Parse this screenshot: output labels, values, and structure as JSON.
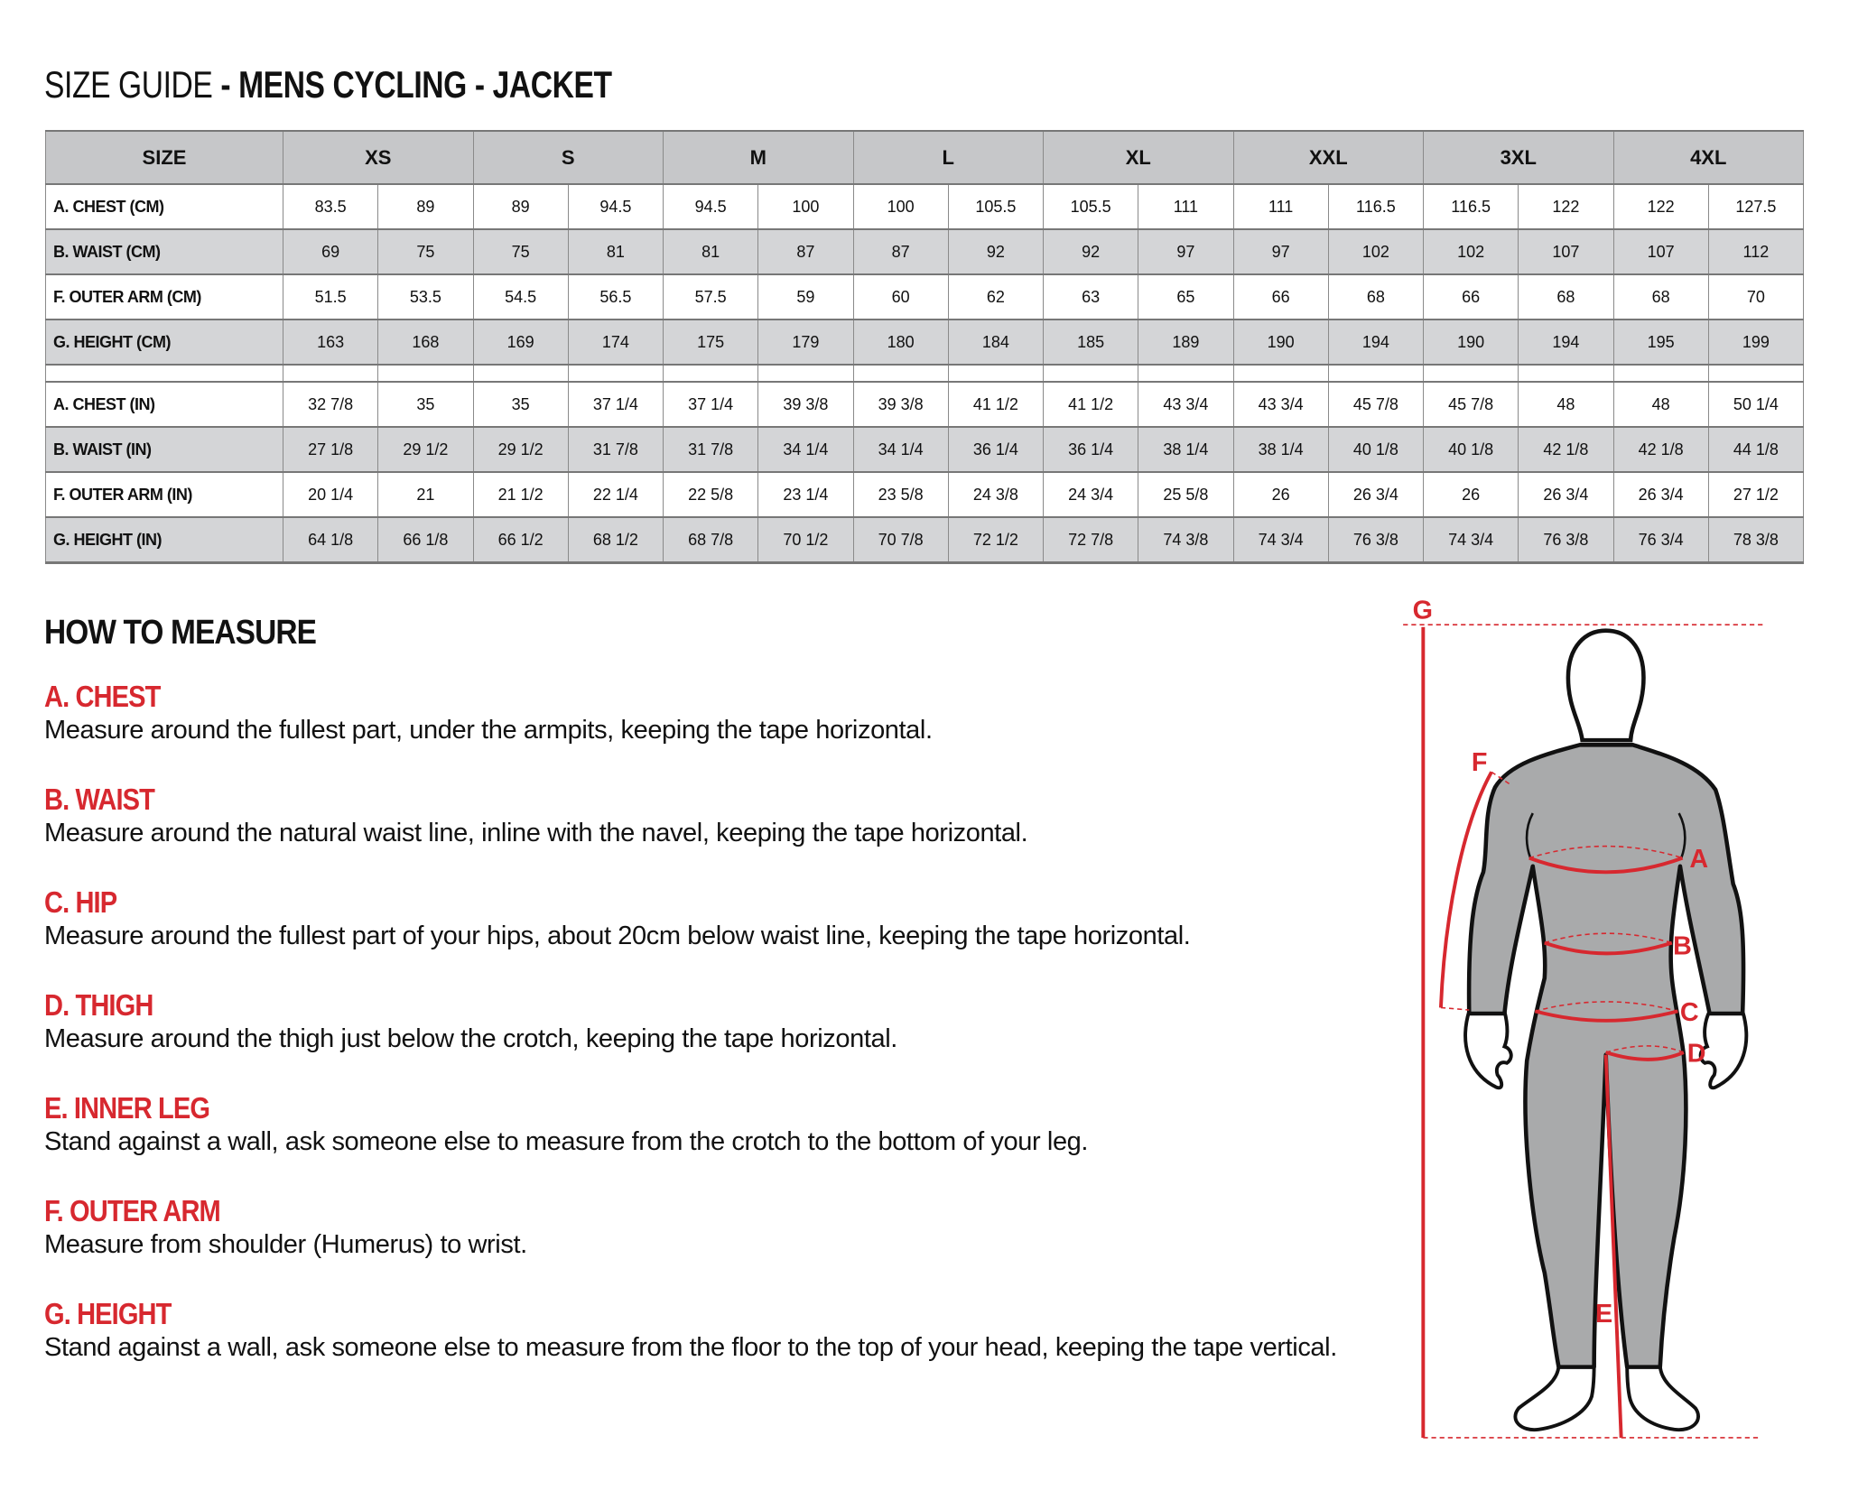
{
  "title": {
    "light": "SIZE GUIDE",
    "bold": " - MENS CYCLING - JACKET"
  },
  "table": {
    "header_label": "SIZE",
    "sizes": [
      "XS",
      "S",
      "M",
      "L",
      "XL",
      "XXL",
      "3XL",
      "4XL"
    ],
    "cm_rows": [
      {
        "label": "A. CHEST (CM)",
        "values": [
          "83.5",
          "89",
          "89",
          "94.5",
          "94.5",
          "100",
          "100",
          "105.5",
          "105.5",
          "111",
          "111",
          "116.5",
          "116.5",
          "122",
          "122",
          "127.5"
        ]
      },
      {
        "label": "B. WAIST (CM)",
        "values": [
          "69",
          "75",
          "75",
          "81",
          "81",
          "87",
          "87",
          "92",
          "92",
          "97",
          "97",
          "102",
          "102",
          "107",
          "107",
          "112"
        ]
      },
      {
        "label": "F. OUTER ARM (CM)",
        "values": [
          "51.5",
          "53.5",
          "54.5",
          "56.5",
          "57.5",
          "59",
          "60",
          "62",
          "63",
          "65",
          "66",
          "68",
          "66",
          "68",
          "68",
          "70"
        ]
      },
      {
        "label": "G. HEIGHT (CM)",
        "values": [
          "163",
          "168",
          "169",
          "174",
          "175",
          "179",
          "180",
          "184",
          "185",
          "189",
          "190",
          "194",
          "190",
          "194",
          "195",
          "199"
        ]
      }
    ],
    "in_rows": [
      {
        "label": "A. CHEST (IN)",
        "values": [
          "32 7/8",
          "35",
          "35",
          "37 1/4",
          "37 1/4",
          "39 3/8",
          "39 3/8",
          "41 1/2",
          "41 1/2",
          "43 3/4",
          "43 3/4",
          "45 7/8",
          "45 7/8",
          "48",
          "48",
          "50 1/4"
        ]
      },
      {
        "label": "B. WAIST (IN)",
        "values": [
          "27 1/8",
          "29 1/2",
          "29 1/2",
          "31 7/8",
          "31 7/8",
          "34 1/4",
          "34 1/4",
          "36 1/4",
          "36 1/4",
          "38 1/4",
          "38 1/4",
          "40 1/8",
          "40 1/8",
          "42 1/8",
          "42 1/8",
          "44 1/8"
        ]
      },
      {
        "label": "F. OUTER ARM (IN)",
        "values": [
          "20 1/4",
          "21",
          "21 1/2",
          "22 1/4",
          "22 5/8",
          "23 1/4",
          "23 5/8",
          "24 3/8",
          "24 3/4",
          "25 5/8",
          "26",
          "26 3/4",
          "26",
          "26 3/4",
          "26 3/4",
          "27 1/2"
        ]
      },
      {
        "label": "G. HEIGHT (IN)",
        "values": [
          "64 1/8",
          "66 1/8",
          "66 1/2",
          "68 1/2",
          "68 7/8",
          "70 1/2",
          "70 7/8",
          "72 1/2",
          "72 7/8",
          "74 3/8",
          "74 3/4",
          "76 3/8",
          "74 3/4",
          "76 3/8",
          "76 3/4",
          "78 3/8"
        ]
      }
    ]
  },
  "how_to_measure": {
    "heading": "HOW TO MEASURE",
    "items": [
      {
        "label": "A. CHEST",
        "text": "Measure around the fullest part, under the armpits, keeping the tape horizontal."
      },
      {
        "label": "B. WAIST",
        "text": "Measure around the natural waist line, inline with the navel, keeping the tape horizontal."
      },
      {
        "label": "C. HIP",
        "text": "Measure around the fullest part of your hips, about 20cm below waist line, keeping the tape horizontal."
      },
      {
        "label": "D. THIGH",
        "text": "Measure around the thigh just below the crotch, keeping the tape horizontal."
      },
      {
        "label": "E. INNER LEG",
        "text": "Stand against a wall, ask someone else to measure from the crotch to the bottom of your leg."
      },
      {
        "label": "F. OUTER ARM",
        "text": "Measure from shoulder (Humerus) to wrist."
      },
      {
        "label": "G. HEIGHT",
        "text": "Stand against a wall, ask someone else to measure from the floor to the top of your head, keeping the tape vertical."
      }
    ]
  },
  "figure": {
    "markers": [
      "A",
      "B",
      "C",
      "D",
      "E",
      "F",
      "G"
    ],
    "colors": {
      "accent": "#d7282f",
      "suit": "#a9aaab",
      "outline": "#111111"
    }
  },
  "colors": {
    "header_bg": "#c6c7c9",
    "alt_row_bg": "#d4d5d7",
    "label_red": "#d7282f"
  }
}
